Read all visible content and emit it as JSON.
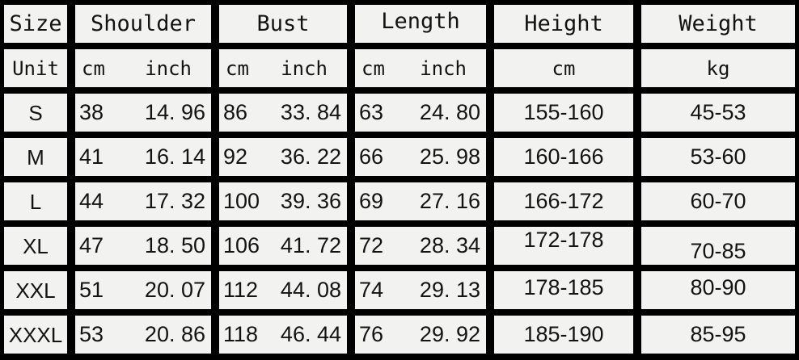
{
  "colors": {
    "grid": "#000000",
    "cell_background": "#f2f2f0",
    "text": "#131313"
  },
  "table": {
    "header": [
      "Size",
      "Shoulder",
      "Bust",
      "Length",
      "Height",
      "Weight"
    ],
    "unit": {
      "label": "Unit",
      "shoulder": {
        "cm": "cm",
        "inch": "inch"
      },
      "bust": {
        "cm": "cm",
        "inch": "inch"
      },
      "length": {
        "cm": "cm",
        "inch": "inch"
      },
      "height": "cm",
      "weight": "kg"
    },
    "rows": [
      {
        "size": "S",
        "shoulder": {
          "cm": "38",
          "inch": "14. 96"
        },
        "bust": {
          "cm": "86",
          "inch": "33. 84"
        },
        "length": {
          "cm": "63",
          "inch": "24. 80"
        },
        "height": "155-160",
        "weight": "45-53"
      },
      {
        "size": "M",
        "shoulder": {
          "cm": "41",
          "inch": "16. 14"
        },
        "bust": {
          "cm": "92",
          "inch": "36. 22"
        },
        "length": {
          "cm": "66",
          "inch": "25. 98"
        },
        "height": "160-166",
        "weight": "53-60"
      },
      {
        "size": "L",
        "shoulder": {
          "cm": "44",
          "inch": "17. 32"
        },
        "bust": {
          "cm": "100",
          "inch": "39. 36"
        },
        "length": {
          "cm": "69",
          "inch": "27. 16"
        },
        "height": "166-172",
        "weight": "60-70"
      },
      {
        "size": "XL",
        "shoulder": {
          "cm": "47",
          "inch": "18. 50"
        },
        "bust": {
          "cm": "106",
          "inch": "41. 72"
        },
        "length": {
          "cm": "72",
          "inch": "28. 34"
        },
        "height": "172-178",
        "weight": "70-85"
      },
      {
        "size": "XXL",
        "shoulder": {
          "cm": "51",
          "inch": "20. 07"
        },
        "bust": {
          "cm": "112",
          "inch": "44. 08"
        },
        "length": {
          "cm": "74",
          "inch": "29. 13"
        },
        "height": "178-185",
        "weight": "80-90"
      },
      {
        "size": "XXXL",
        "shoulder": {
          "cm": "53",
          "inch": "20. 86"
        },
        "bust": {
          "cm": "118",
          "inch": "46. 44"
        },
        "length": {
          "cm": "76",
          "inch": "29. 92"
        },
        "height": "185-190",
        "weight": "85-95"
      }
    ]
  },
  "chart_data": {
    "type": "table",
    "columns": [
      "Size",
      "Shoulder cm",
      "Shoulder inch",
      "Bust cm",
      "Bust inch",
      "Length cm",
      "Length inch",
      "Height cm",
      "Weight kg"
    ],
    "rows": [
      [
        "S",
        38,
        14.96,
        86,
        33.84,
        63,
        24.8,
        "155-160",
        "45-53"
      ],
      [
        "M",
        41,
        16.14,
        92,
        36.22,
        66,
        25.98,
        "160-166",
        "53-60"
      ],
      [
        "L",
        44,
        17.32,
        100,
        39.36,
        69,
        27.16,
        "166-172",
        "60-70"
      ],
      [
        "XL",
        47,
        18.5,
        106,
        41.72,
        72,
        28.34,
        "172-178",
        "70-85"
      ],
      [
        "XXL",
        51,
        20.07,
        112,
        44.08,
        74,
        29.13,
        "178-185",
        "80-90"
      ],
      [
        "XXXL",
        53,
        20.86,
        118,
        46.44,
        76,
        29.92,
        "185-190",
        "85-95"
      ]
    ]
  }
}
